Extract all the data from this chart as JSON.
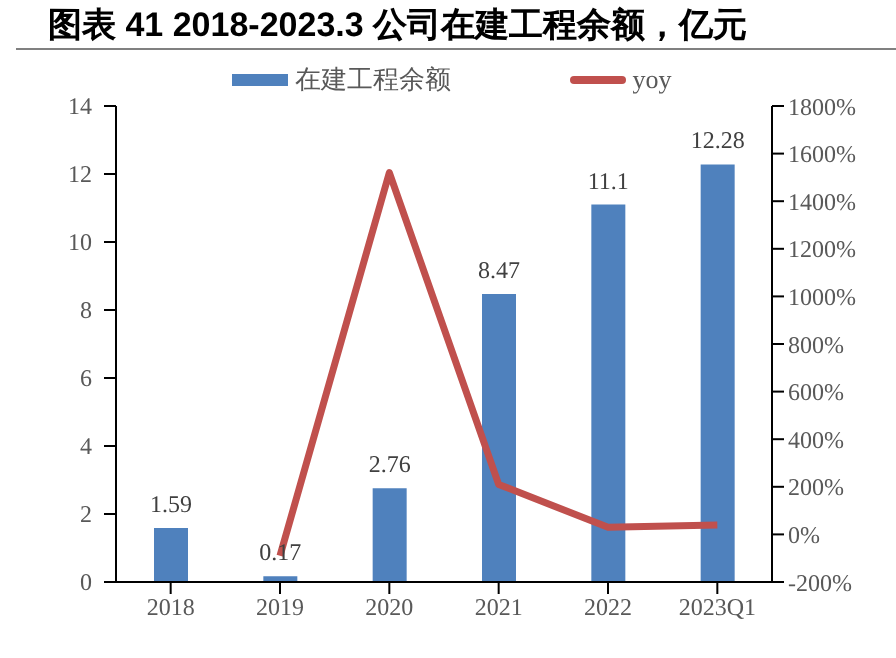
{
  "chart_data": {
    "type": "bar",
    "title": "图表 41 2018-2023.3 公司在建工程余额，亿元",
    "categories": [
      "2018",
      "2019",
      "2020",
      "2021",
      "2022",
      "2023Q1"
    ],
    "series": [
      {
        "name": "在建工程余额",
        "color": "#4f81bd",
        "values": [
          1.59,
          0.17,
          2.76,
          8.47,
          11.1,
          12.28
        ],
        "data_labels": true
      },
      {
        "name": "yoy",
        "type": "line",
        "axis": "y2",
        "color": "#c0504d",
        "values": [
          null,
          -90,
          1520,
          210,
          30,
          40
        ],
        "marker": "none"
      }
    ],
    "ylim": [
      0,
      14
    ],
    "yticks": [
      0,
      2,
      4,
      6,
      8,
      10,
      12,
      14
    ],
    "y2lim": [
      -200,
      1800
    ],
    "y2ticks": [
      {
        "value": -200,
        "label": "-200%"
      },
      {
        "value": 0,
        "label": "0%"
      },
      {
        "value": 200,
        "label": "200%"
      },
      {
        "value": 400,
        "label": "400%"
      },
      {
        "value": 600,
        "label": "600%"
      },
      {
        "value": 800,
        "label": "800%"
      },
      {
        "value": 1000,
        "label": "1000%"
      },
      {
        "value": 1200,
        "label": "1200%"
      },
      {
        "value": 1400,
        "label": "1400%"
      },
      {
        "value": 1600,
        "label": "1600%"
      },
      {
        "value": 1800,
        "label": "1800%"
      }
    ],
    "grid": false,
    "legend": "top"
  }
}
